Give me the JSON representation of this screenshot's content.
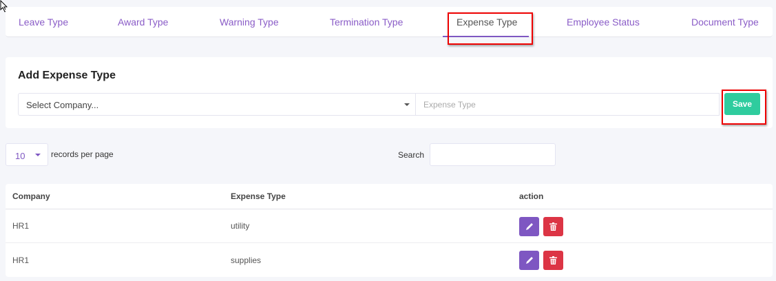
{
  "tabs": [
    {
      "label": "Leave Type",
      "active": false
    },
    {
      "label": "Award Type",
      "active": false
    },
    {
      "label": "Warning Type",
      "active": false
    },
    {
      "label": "Termination Type",
      "active": false
    },
    {
      "label": "Expense Type",
      "active": true
    },
    {
      "label": "Employee Status",
      "active": false
    },
    {
      "label": "Document Type",
      "active": false
    }
  ],
  "form": {
    "title": "Add Expense Type",
    "company_select": "Select Company...",
    "expense_placeholder": "Expense Type",
    "save_label": "Save"
  },
  "list": {
    "page_length": "10",
    "page_length_label": "records per page",
    "search_label": "Search"
  },
  "table": {
    "columns": [
      "Company",
      "Expense Type",
      "action"
    ],
    "rows": [
      {
        "company": "HR1",
        "expense_type": "utility"
      },
      {
        "company": "HR1",
        "expense_type": "supplies"
      }
    ]
  },
  "colors": {
    "accent": "#7e57c2",
    "save": "#2fcc9e",
    "delete": "#dc3545",
    "annotation": "#e00000"
  }
}
